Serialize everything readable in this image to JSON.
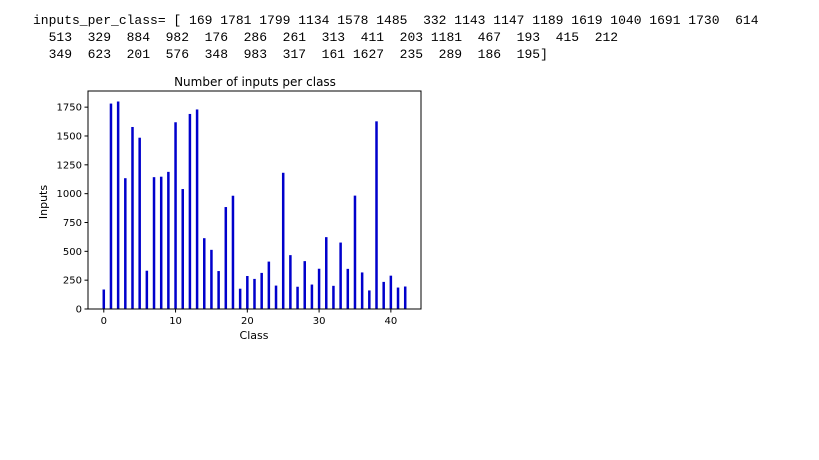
{
  "output": {
    "lines": [
      "inputs_per_class= [ 169 1781 1799 1134 1578 1485  332 1143 1147 1189 1619 1040 1691 1730  614",
      "  513  329  884  982  176  286  261  313  411  203 1181  467  193  415  212",
      "  349  623  201  576  348  983  317  161 1627  235  289  186  195]"
    ]
  },
  "chart_data": {
    "type": "bar",
    "title": "Number of inputs per class",
    "xlabel": "Class",
    "ylabel": "Inputs",
    "x": [
      0,
      1,
      2,
      3,
      4,
      5,
      6,
      7,
      8,
      9,
      10,
      11,
      12,
      13,
      14,
      15,
      16,
      17,
      18,
      19,
      20,
      21,
      22,
      23,
      24,
      25,
      26,
      27,
      28,
      29,
      30,
      31,
      32,
      33,
      34,
      35,
      36,
      37,
      38,
      39,
      40,
      41,
      42
    ],
    "values": [
      169,
      1781,
      1799,
      1134,
      1578,
      1485,
      332,
      1143,
      1147,
      1189,
      1619,
      1040,
      1691,
      1730,
      614,
      513,
      329,
      884,
      982,
      176,
      286,
      261,
      313,
      411,
      203,
      1181,
      467,
      193,
      415,
      212,
      349,
      623,
      201,
      576,
      348,
      983,
      317,
      161,
      1627,
      235,
      289,
      186,
      195
    ],
    "xticks": [
      "0",
      "10",
      "20",
      "30",
      "40"
    ],
    "yticks": [
      "0",
      "250",
      "500",
      "750",
      "1000",
      "1250",
      "1500",
      "1750"
    ],
    "xlim": [
      -2.2,
      44.2
    ],
    "ylim": [
      0,
      1890
    ],
    "bar_color": "#0000cc",
    "grid": false
  }
}
